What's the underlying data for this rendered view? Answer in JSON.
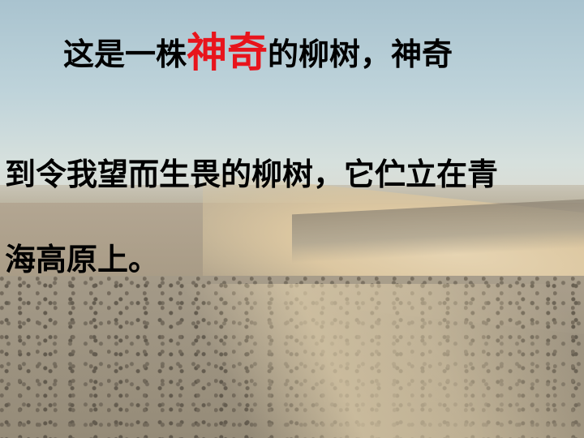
{
  "slide": {
    "background": "desert-landscape",
    "text_color": "#000000",
    "emphasis_color": "#e8141c",
    "line1": {
      "before": "这是一株",
      "emphasis": "神奇",
      "after": "的柳树，神奇"
    },
    "line2": "到令我望而生畏的柳树，它伫立在青",
    "line3": "海高原上。"
  }
}
